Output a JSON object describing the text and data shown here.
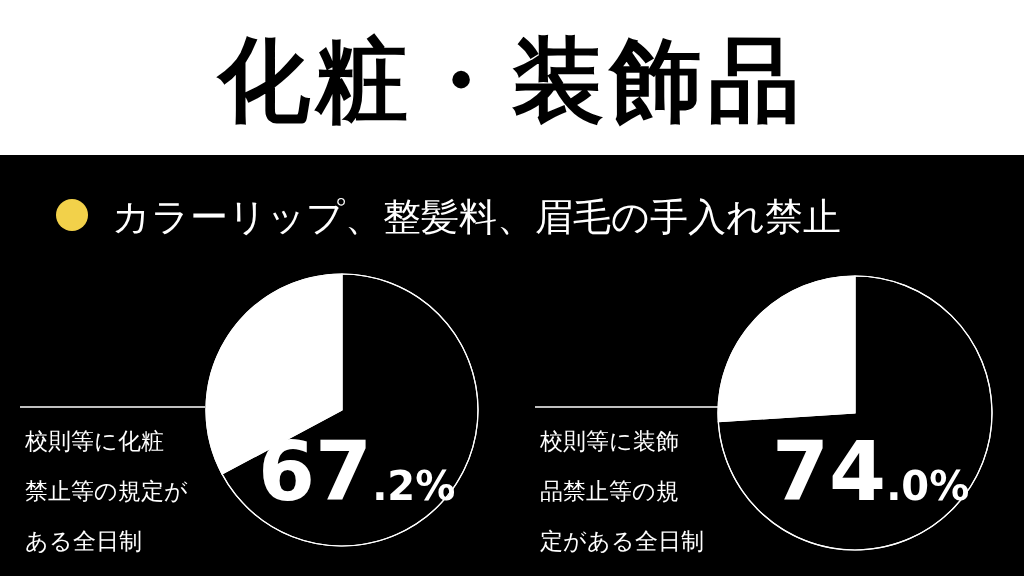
{
  "chart_data": [
    {
      "type": "pie",
      "title": "化粧・装飾品",
      "subtitle": "カラーリップ、整髪料、眉毛の手入れ禁止",
      "categories": [
        null,
        null
      ],
      "values": [
        67.2,
        32.8
      ],
      "colors": [
        "#000000",
        "#ffffff"
      ],
      "value_labels": [
        "67.2%",
        null
      ],
      "annotations": [
        "校則等に化粧",
        "禁止等の規定が",
        "ある全日制"
      ]
    },
    {
      "type": "pie",
      "categories": [
        null,
        null
      ],
      "values": [
        74.0,
        26.0
      ],
      "colors": [
        "#000000",
        "#ffffff"
      ],
      "value_labels": [
        "74.0%",
        null
      ],
      "annotations": [
        "校則等に装飾",
        "品禁止等の規",
        "定がある全日制"
      ]
    }
  ]
}
